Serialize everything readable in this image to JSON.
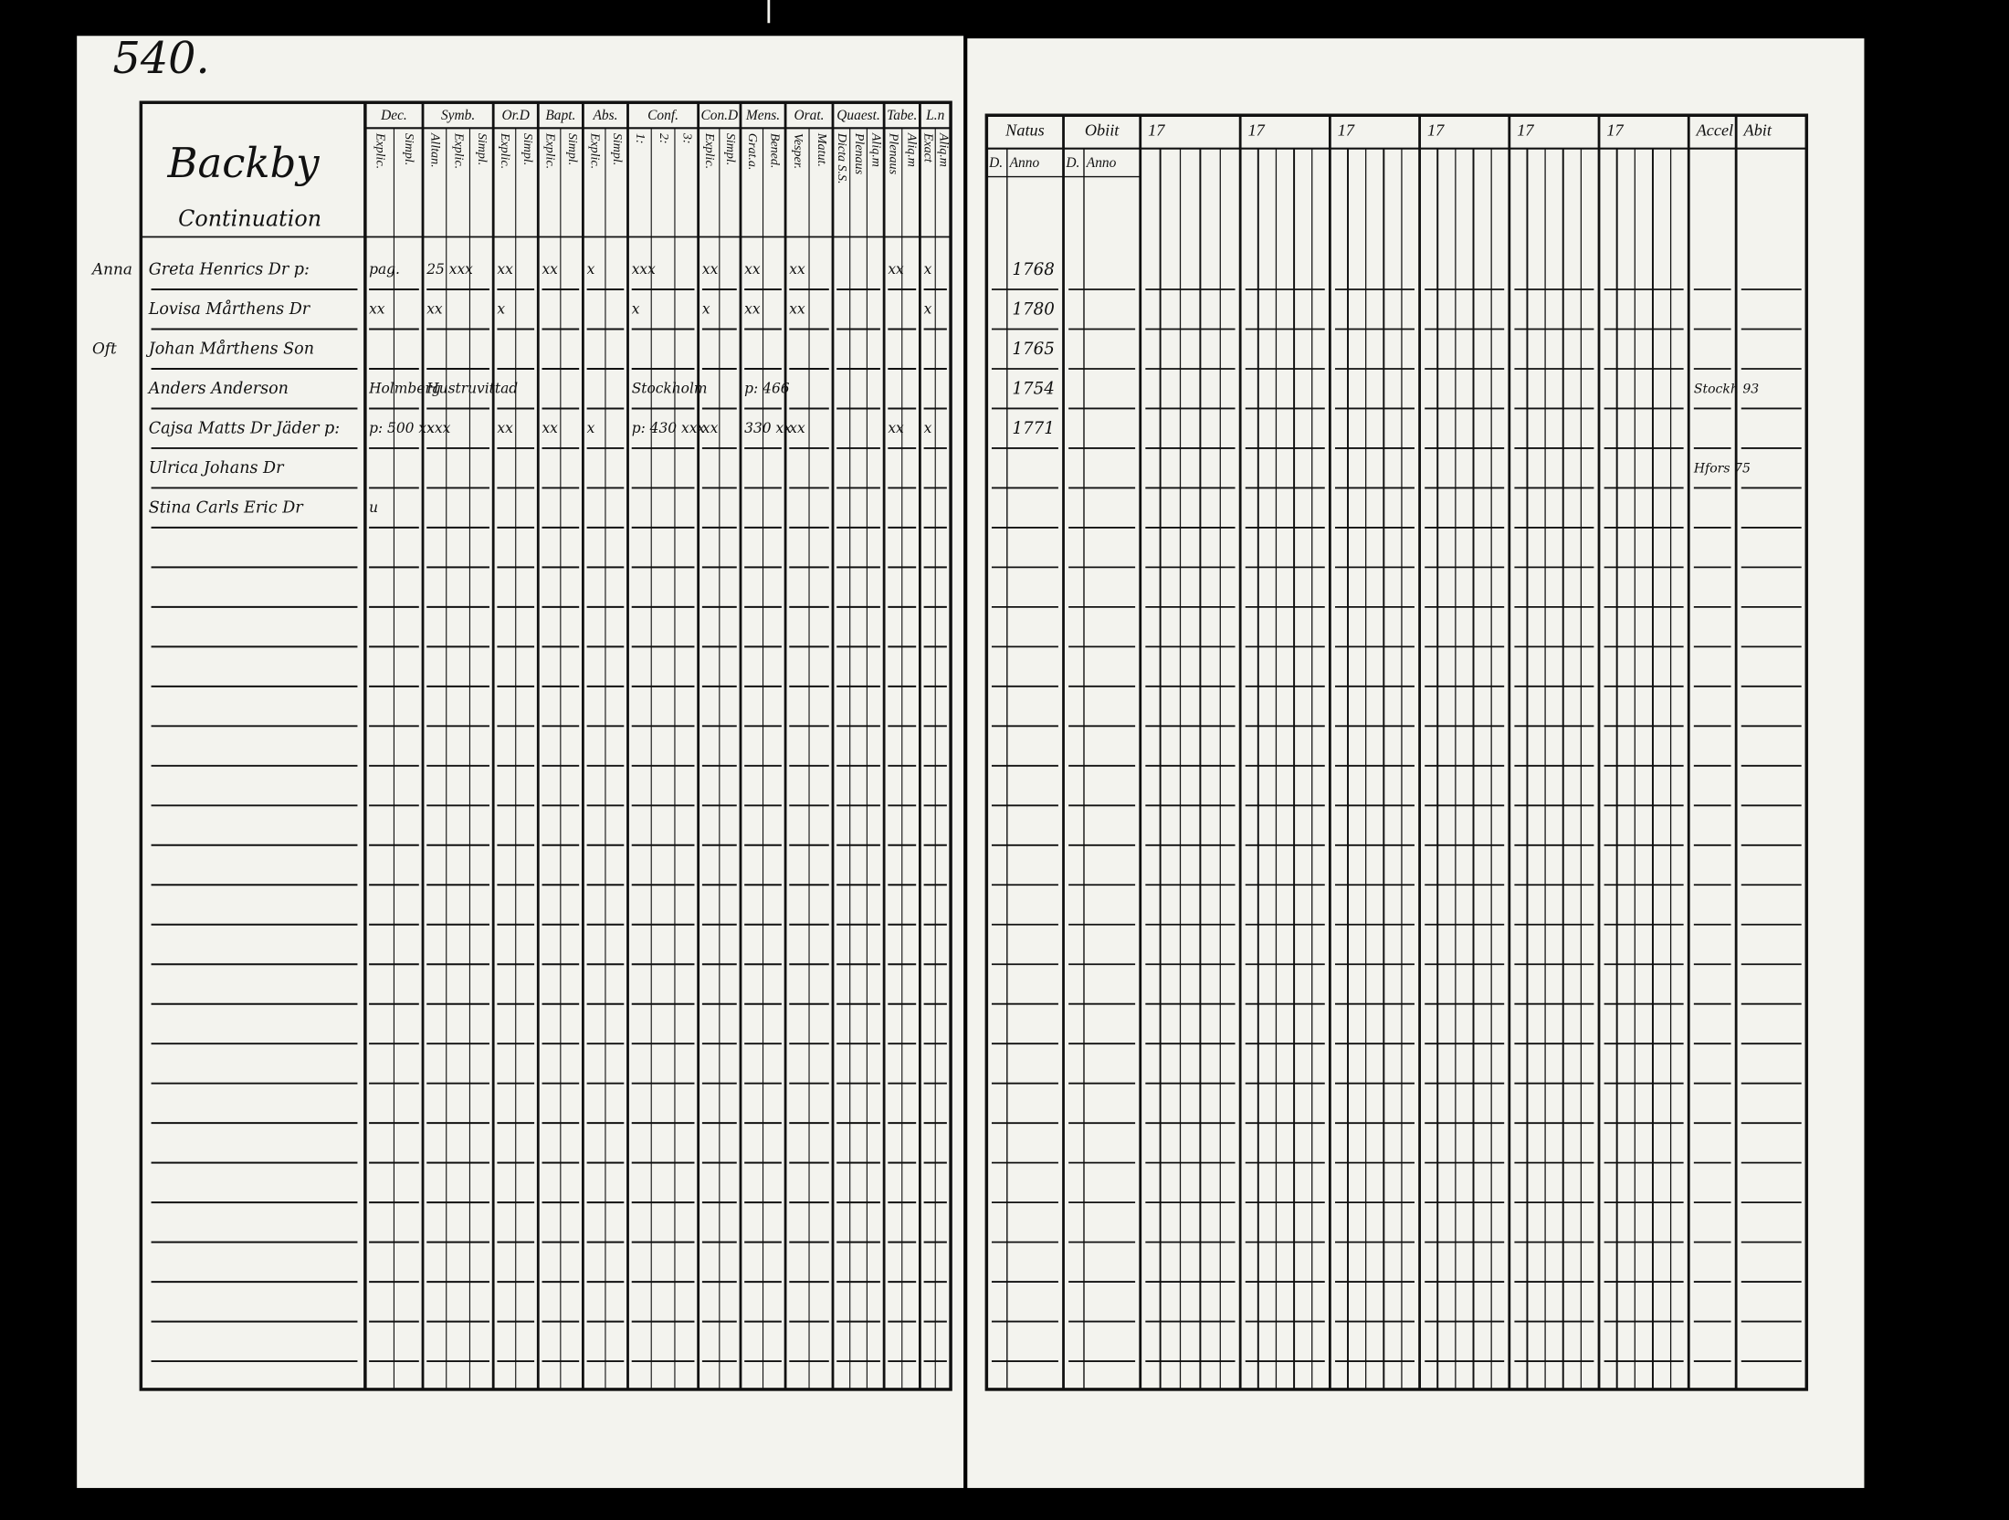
{
  "page_number": "540.",
  "left_page": {
    "title": "Backby",
    "subtitle": "Continuation",
    "margin_notes": [
      {
        "text": "Anna",
        "row": 0
      },
      {
        "text": "Oft",
        "row": 2
      }
    ],
    "columns": [
      {
        "label": "Dec.",
        "sub": [
          "Explic.",
          "Simpl."
        ]
      },
      {
        "label": "Symb.",
        "sub": [
          "Alltan.",
          "Explic.",
          "Simpl."
        ]
      },
      {
        "label": "Or.D",
        "sub": [
          "Explic.",
          "Simpl."
        ]
      },
      {
        "label": "Bapt.",
        "sub": [
          "Explic.",
          "Simpl."
        ]
      },
      {
        "label": "Abs.",
        "sub": [
          "Explic.",
          "Simpl."
        ]
      },
      {
        "label": "Conf.",
        "sub": [
          "1:",
          "2:",
          "3:"
        ]
      },
      {
        "label": "Con.D",
        "sub": [
          "Explic.",
          "Simpl."
        ]
      },
      {
        "label": "Mens.",
        "sub": [
          "Grat.a.",
          "Bened."
        ]
      },
      {
        "label": "Orat.",
        "sub": [
          "Vesper.",
          "Matut."
        ]
      },
      {
        "label": "Quaest.",
        "sub": [
          "Dicta S.S.",
          "Plenaus",
          "Aliq.m"
        ]
      },
      {
        "label": "Tabe.",
        "sub": [
          "Plenaus",
          "Aliq.m"
        ]
      },
      {
        "label": "L.n",
        "sub": [
          "Exact",
          "Aliq.m"
        ]
      }
    ],
    "rows": [
      {
        "name": "Greta Henrics Dr p:",
        "entries": [
          "pag.",
          "25 xxx",
          "xx",
          "xx",
          "x",
          "xxx",
          "xx",
          "xx",
          "xx",
          null,
          "xx",
          "x"
        ]
      },
      {
        "name": "Lovisa Mårthens Dr",
        "entries": [
          "xx",
          "xx",
          "x",
          null,
          null,
          "x",
          "x",
          "xx",
          "xx",
          null,
          null,
          "x"
        ]
      },
      {
        "name": "Johan Mårthens Son",
        "entries": [
          null,
          null,
          null,
          null,
          null,
          null,
          null,
          null,
          null,
          null,
          null,
          null
        ]
      },
      {
        "name": "Anders Anderson",
        "entries": [
          "Holmberg",
          "Hustruvittad",
          null,
          null,
          null,
          "Stockholm",
          null,
          "p: 466",
          null,
          null,
          null,
          null
        ]
      },
      {
        "name": "Cajsa Matts Dr Jäder p:",
        "entries": [
          "p: 500 xx",
          "xxx",
          "xx",
          "xx",
          "x",
          "p: 430 xxx",
          "xx",
          "330 xx",
          "xx",
          null,
          "xx",
          "x"
        ]
      },
      {
        "name": "Ulrica Johans Dr",
        "entries": [
          null,
          null,
          null,
          null,
          null,
          null,
          null,
          null,
          null,
          null,
          null,
          null
        ]
      },
      {
        "name": "Stina Carls Eric Dr",
        "entries": [
          "u",
          null,
          null,
          null,
          null,
          null,
          null,
          null,
          null,
          null,
          null,
          null
        ]
      }
    ]
  },
  "right_page": {
    "columns": [
      {
        "label": "Natus",
        "sub": [
          "D.",
          "Anno"
        ]
      },
      {
        "label": "Obiit",
        "sub": [
          "D.",
          "Anno"
        ]
      },
      {
        "label": "17",
        "sub": []
      },
      {
        "label": "17",
        "sub": []
      },
      {
        "label": "17",
        "sub": []
      },
      {
        "label": "17",
        "sub": []
      },
      {
        "label": "17",
        "sub": []
      },
      {
        "label": "17",
        "sub": []
      },
      {
        "label": "Accel",
        "sub": []
      },
      {
        "label": "Abit",
        "sub": []
      }
    ],
    "rows": [
      {
        "born": "1768",
        "note": null
      },
      {
        "born": "1780",
        "note": null
      },
      {
        "born": "1765",
        "note": null
      },
      {
        "born": "1754",
        "note": "Stockh 93"
      },
      {
        "born": "1771",
        "note": null
      },
      {
        "born": null,
        "note": "Hfors 75"
      },
      {
        "born": null,
        "note": null
      }
    ]
  }
}
